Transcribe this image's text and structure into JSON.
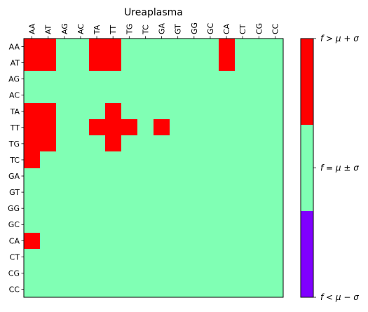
{
  "chart_data": {
    "type": "heatmap",
    "title": "Ureaplasma",
    "x_labels": [
      "AA",
      "AT",
      "AG",
      "AC",
      "TA",
      "TT",
      "TG",
      "TC",
      "GA",
      "GT",
      "GG",
      "GC",
      "CA",
      "CT",
      "CG",
      "CC"
    ],
    "y_labels": [
      "AA",
      "AT",
      "AG",
      "AC",
      "TA",
      "TT",
      "TG",
      "TC",
      "GA",
      "GT",
      "GG",
      "GC",
      "CA",
      "CT",
      "CG",
      "CC"
    ],
    "levels": [
      {
        "value": -1,
        "label": "f < μ − σ",
        "color": "#8000ff"
      },
      {
        "value": 0,
        "label": "f = μ ± σ",
        "color": "#80ffb4"
      },
      {
        "value": 1,
        "label": "f > μ + σ",
        "color": "#ff0000"
      }
    ],
    "matrix": [
      [
        1,
        1,
        0,
        0,
        1,
        1,
        0,
        0,
        0,
        0,
        0,
        0,
        1,
        0,
        0,
        0
      ],
      [
        1,
        1,
        0,
        0,
        1,
        1,
        0,
        0,
        0,
        0,
        0,
        0,
        1,
        0,
        0,
        0
      ],
      [
        0,
        0,
        0,
        0,
        0,
        0,
        0,
        0,
        0,
        0,
        0,
        0,
        0,
        0,
        0,
        0
      ],
      [
        0,
        0,
        0,
        0,
        0,
        0,
        0,
        0,
        0,
        0,
        0,
        0,
        0,
        0,
        0,
        0
      ],
      [
        1,
        1,
        0,
        0,
        0,
        1,
        0,
        0,
        0,
        0,
        0,
        0,
        0,
        0,
        0,
        0
      ],
      [
        1,
        1,
        0,
        0,
        1,
        1,
        1,
        0,
        1,
        0,
        0,
        0,
        0,
        0,
        0,
        0
      ],
      [
        1,
        1,
        0,
        0,
        0,
        1,
        0,
        0,
        0,
        0,
        0,
        0,
        0,
        0,
        0,
        0
      ],
      [
        1,
        0,
        0,
        0,
        0,
        0,
        0,
        0,
        0,
        0,
        0,
        0,
        0,
        0,
        0,
        0
      ],
      [
        0,
        0,
        0,
        0,
        0,
        0,
        0,
        0,
        0,
        0,
        0,
        0,
        0,
        0,
        0,
        0
      ],
      [
        0,
        0,
        0,
        0,
        0,
        0,
        0,
        0,
        0,
        0,
        0,
        0,
        0,
        0,
        0,
        0
      ],
      [
        0,
        0,
        0,
        0,
        0,
        0,
        0,
        0,
        0,
        0,
        0,
        0,
        0,
        0,
        0,
        0
      ],
      [
        0,
        0,
        0,
        0,
        0,
        0,
        0,
        0,
        0,
        0,
        0,
        0,
        0,
        0,
        0,
        0
      ],
      [
        1,
        0,
        0,
        0,
        0,
        0,
        0,
        0,
        0,
        0,
        0,
        0,
        0,
        0,
        0,
        0
      ],
      [
        0,
        0,
        0,
        0,
        0,
        0,
        0,
        0,
        0,
        0,
        0,
        0,
        0,
        0,
        0,
        0
      ],
      [
        0,
        0,
        0,
        0,
        0,
        0,
        0,
        0,
        0,
        0,
        0,
        0,
        0,
        0,
        0,
        0
      ],
      [
        0,
        0,
        0,
        0,
        0,
        0,
        0,
        0,
        0,
        0,
        0,
        0,
        0,
        0,
        0,
        0
      ]
    ],
    "legend": "right"
  }
}
